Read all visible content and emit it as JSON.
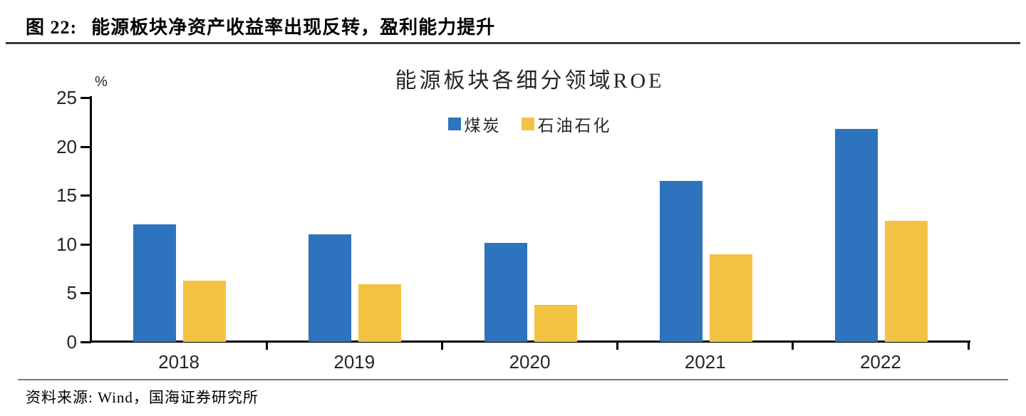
{
  "header": {
    "caption_prefix": "图 22:",
    "caption_text": "能源板块净资产收益率出现反转，盈利能力提升"
  },
  "footer": {
    "source": "资料来源: Wind，国海证券研究所"
  },
  "chart_data": {
    "type": "bar",
    "title": "能源板块各细分领域ROE",
    "y_unit": "%",
    "categories": [
      "2018",
      "2019",
      "2020",
      "2021",
      "2022"
    ],
    "series": [
      {
        "name": "煤炭",
        "color": "#2E73BD",
        "values": [
          12.0,
          11.0,
          10.1,
          16.5,
          21.8
        ]
      },
      {
        "name": "石油石化",
        "color": "#F2C243",
        "values": [
          6.3,
          5.9,
          3.8,
          9.0,
          12.4
        ]
      }
    ],
    "ylim": [
      0,
      25
    ],
    "yticks": [
      0,
      5,
      10,
      15,
      20,
      25
    ],
    "legend_position": "top-center",
    "grid": false,
    "axis_color": "#000000",
    "label_color": "#262626"
  }
}
